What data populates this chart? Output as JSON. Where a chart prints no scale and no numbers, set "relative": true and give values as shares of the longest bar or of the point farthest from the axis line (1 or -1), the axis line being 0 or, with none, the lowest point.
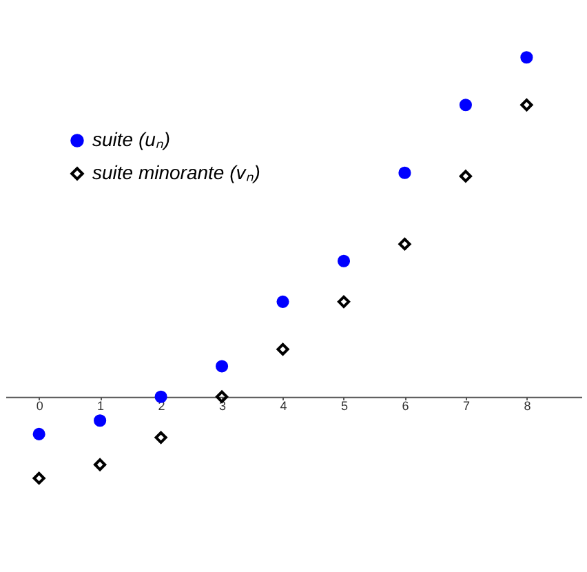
{
  "chart_data": {
    "type": "scatter",
    "relative": true,
    "x": [
      0,
      1,
      2,
      3,
      4,
      5,
      6,
      7,
      8
    ],
    "xlim": [
      -0.55,
      8.9
    ],
    "xticks": [
      0,
      1,
      2,
      3,
      4,
      5,
      6,
      7,
      8
    ],
    "grid": false,
    "legend": "top left",
    "series": [
      {
        "name": "suite (uₙ)",
        "color": "#0000ff",
        "marker": "circle",
        "values": [
          -0.11,
          -0.07,
          0,
          0.09,
          0.28,
          0.4,
          0.66,
          0.86,
          1
        ]
      },
      {
        "name": "suite minorante (vₙ)",
        "color": "#000000",
        "marker": "diamond",
        "values": [
          -0.24,
          -0.2,
          -0.12,
          0,
          0.14,
          0.28,
          0.45,
          0.65,
          0.86
        ]
      }
    ]
  }
}
